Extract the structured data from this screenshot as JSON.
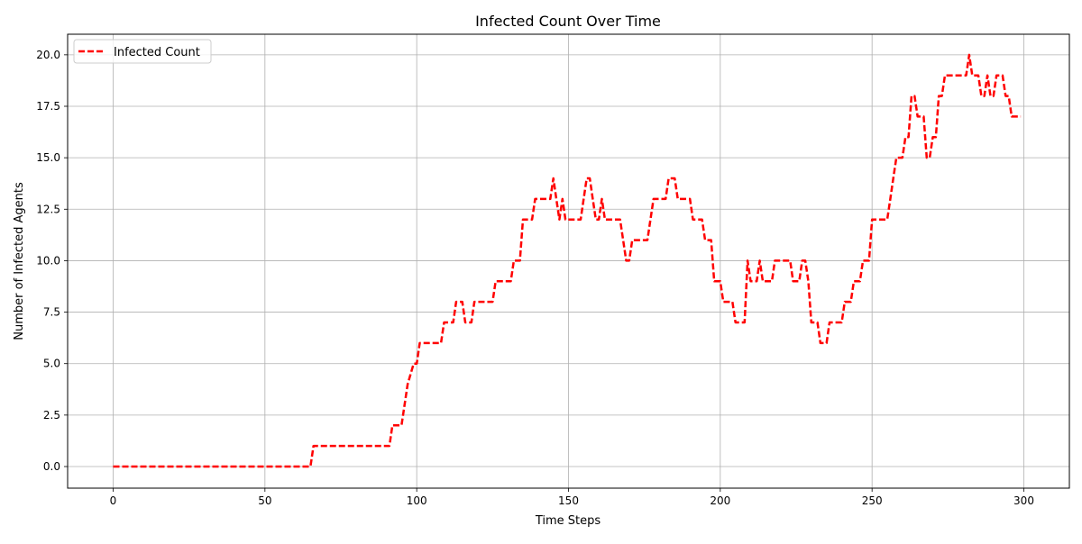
{
  "chart_data": {
    "type": "line",
    "title": "Infected Count Over Time",
    "xlabel": "Time Steps",
    "ylabel": "Number of Infected Agents",
    "xlim": [
      -15,
      315
    ],
    "ylim": [
      -1.05,
      21.0
    ],
    "xticks": [
      0,
      50,
      100,
      150,
      200,
      250,
      300
    ],
    "yticks": [
      0.0,
      2.5,
      5.0,
      7.5,
      10.0,
      12.5,
      15.0,
      17.5,
      20.0
    ],
    "xtick_labels": [
      "0",
      "50",
      "100",
      "150",
      "200",
      "250",
      "300"
    ],
    "ytick_labels": [
      "0.0",
      "2.5",
      "5.0",
      "7.5",
      "10.0",
      "12.5",
      "15.0",
      "17.5",
      "20.0"
    ],
    "grid": true,
    "legend_placement": "top-left",
    "series": [
      {
        "name": "Infected Count",
        "color": "#ff0000",
        "dash": "dashed",
        "points": [
          [
            0,
            0
          ],
          [
            65,
            0
          ],
          [
            66,
            1
          ],
          [
            91,
            1
          ],
          [
            92,
            2
          ],
          [
            95,
            2
          ],
          [
            96,
            3
          ],
          [
            97,
            4
          ],
          [
            99,
            5
          ],
          [
            100,
            5
          ],
          [
            101,
            6
          ],
          [
            108,
            6
          ],
          [
            109,
            7
          ],
          [
            112,
            7
          ],
          [
            113,
            8
          ],
          [
            115,
            8
          ],
          [
            116,
            7
          ],
          [
            118,
            7
          ],
          [
            119,
            8
          ],
          [
            125,
            8
          ],
          [
            126,
            9
          ],
          [
            131,
            9
          ],
          [
            132,
            10
          ],
          [
            134,
            10
          ],
          [
            135,
            12
          ],
          [
            138,
            12
          ],
          [
            139,
            13
          ],
          [
            144,
            13
          ],
          [
            145,
            14
          ],
          [
            146,
            13
          ],
          [
            147,
            12
          ],
          [
            148,
            13
          ],
          [
            149,
            12
          ],
          [
            154,
            12
          ],
          [
            155,
            13
          ],
          [
            156,
            14
          ],
          [
            157,
            14
          ],
          [
            158,
            13
          ],
          [
            159,
            12
          ],
          [
            160,
            12
          ],
          [
            161,
            13
          ],
          [
            162,
            12
          ],
          [
            167,
            12
          ],
          [
            168,
            11
          ],
          [
            169,
            10
          ],
          [
            170,
            10
          ],
          [
            171,
            11
          ],
          [
            176,
            11
          ],
          [
            177,
            12
          ],
          [
            178,
            13
          ],
          [
            182,
            13
          ],
          [
            183,
            14
          ],
          [
            185,
            14
          ],
          [
            186,
            13
          ],
          [
            190,
            13
          ],
          [
            191,
            12
          ],
          [
            194,
            12
          ],
          [
            195,
            11
          ],
          [
            197,
            11
          ],
          [
            198,
            9
          ],
          [
            200,
            9
          ],
          [
            201,
            8
          ],
          [
            204,
            8
          ],
          [
            205,
            7
          ],
          [
            208,
            7
          ],
          [
            209,
            10
          ],
          [
            210,
            9
          ],
          [
            212,
            9
          ],
          [
            213,
            10
          ],
          [
            214,
            9
          ],
          [
            217,
            9
          ],
          [
            218,
            10
          ],
          [
            223,
            10
          ],
          [
            224,
            9
          ],
          [
            226,
            9
          ],
          [
            227,
            10
          ],
          [
            228,
            10
          ],
          [
            229,
            9
          ],
          [
            230,
            7
          ],
          [
            232,
            7
          ],
          [
            233,
            6
          ],
          [
            235,
            6
          ],
          [
            236,
            7
          ],
          [
            240,
            7
          ],
          [
            241,
            8
          ],
          [
            243,
            8
          ],
          [
            244,
            9
          ],
          [
            246,
            9
          ],
          [
            247,
            10
          ],
          [
            249,
            10
          ],
          [
            250,
            12
          ],
          [
            255,
            12
          ],
          [
            256,
            13
          ],
          [
            257,
            14
          ],
          [
            258,
            15
          ],
          [
            260,
            15
          ],
          [
            261,
            16
          ],
          [
            262,
            16
          ],
          [
            263,
            18
          ],
          [
            264,
            18
          ],
          [
            265,
            17
          ],
          [
            267,
            17
          ],
          [
            268,
            15
          ],
          [
            269,
            15
          ],
          [
            270,
            16
          ],
          [
            271,
            16
          ],
          [
            272,
            18
          ],
          [
            273,
            18
          ],
          [
            274,
            19
          ],
          [
            281,
            19
          ],
          [
            282,
            20
          ],
          [
            283,
            19
          ],
          [
            285,
            19
          ],
          [
            286,
            18
          ],
          [
            287,
            18
          ],
          [
            288,
            19
          ],
          [
            289,
            18
          ],
          [
            290,
            18
          ],
          [
            291,
            19
          ],
          [
            293,
            19
          ],
          [
            294,
            18
          ],
          [
            295,
            18
          ],
          [
            296,
            17
          ],
          [
            299,
            17
          ]
        ]
      }
    ]
  }
}
